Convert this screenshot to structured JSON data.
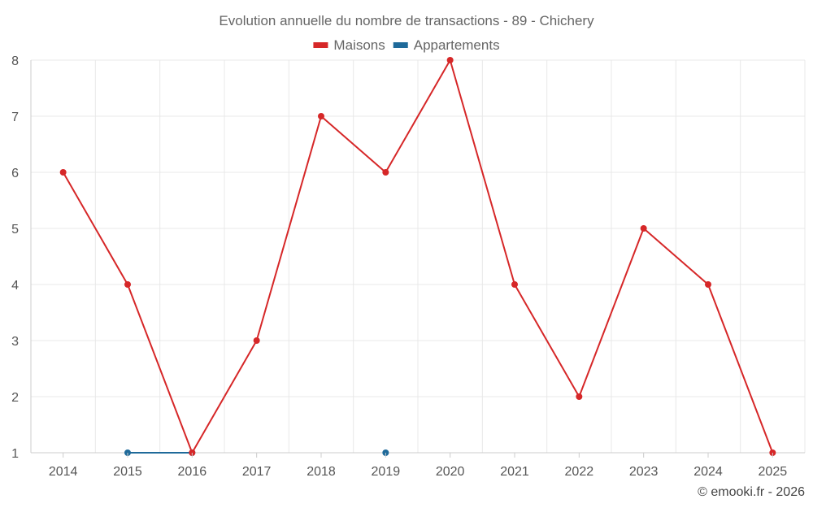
{
  "chart_data": {
    "type": "line",
    "title": "Evolution annuelle du nombre de transactions - 89 - Chichery",
    "categories": [
      "2014",
      "2015",
      "2016",
      "2017",
      "2018",
      "2019",
      "2020",
      "2021",
      "2022",
      "2023",
      "2024",
      "2025"
    ],
    "series": [
      {
        "name": "Maisons",
        "color": "#d62728",
        "values": [
          6,
          4,
          1,
          3,
          7,
          6,
          8,
          4,
          2,
          5,
          4,
          1
        ]
      },
      {
        "name": "Appartements",
        "color": "#1f6a9a",
        "values": [
          null,
          1,
          1,
          null,
          null,
          1,
          null,
          null,
          null,
          null,
          null,
          null
        ]
      }
    ],
    "ylim": [
      1,
      8
    ],
    "yticks": [
      "1",
      "2",
      "3",
      "4",
      "5",
      "6",
      "7",
      "8"
    ],
    "legend_position": "top-center",
    "grid": true
  },
  "credit": "© emooki.fr - 2026"
}
